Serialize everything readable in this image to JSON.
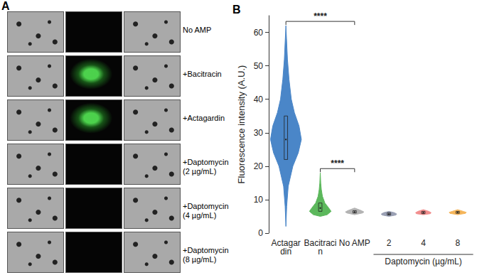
{
  "panel_a": {
    "letter": "A",
    "rows": [
      "No AMP",
      "+Bacitracin",
      "+Actagardin",
      "+Daptomycin (2 µg/mL)",
      "+Daptomycin (4 µg/mL)",
      "+Daptomycin (8 µg/mL)"
    ]
  },
  "chart_data": {
    "type": "violin",
    "panel_label": "B",
    "y_label": "Fluorescence intensity (A.U.)",
    "categories": [
      "Actagardin",
      "Bacitracin",
      "No AMP",
      "2",
      "4",
      "8"
    ],
    "colors": [
      "#4a86c8",
      "#5cb85c",
      "#b3b3b3",
      "#9aa0b4",
      "#f28e8e",
      "#f5b55a"
    ],
    "ylim": [
      0,
      65
    ],
    "yticks": [
      0,
      10,
      20,
      30,
      40,
      50,
      60
    ],
    "grid": false,
    "violins": [
      {
        "median": 28,
        "q1": 22,
        "q3": 35,
        "density": {
          "y": [
            2,
            8,
            14,
            20,
            24,
            28,
            32,
            36,
            40,
            46,
            52,
            58,
            62
          ],
          "width": [
            0,
            0.05,
            0.15,
            0.45,
            0.8,
            1.0,
            0.85,
            0.55,
            0.35,
            0.2,
            0.1,
            0.04,
            0
          ]
        }
      },
      {
        "median": 7.5,
        "q1": 6.5,
        "q3": 9,
        "density": {
          "y": [
            5,
            5.5,
            6.5,
            7.5,
            9,
            11,
            13,
            15,
            18
          ],
          "width": [
            0,
            0.45,
            0.7,
            0.55,
            0.3,
            0.14,
            0.07,
            0.03,
            0
          ]
        }
      },
      {
        "median": 6.3,
        "q1": 6,
        "q3": 6.7,
        "density": {
          "y": [
            5.5,
            6,
            6.3,
            6.7,
            7.5
          ],
          "width": [
            0,
            0.5,
            0.6,
            0.45,
            0
          ]
        }
      },
      {
        "median": 5.7,
        "q1": 5.4,
        "q3": 6.1,
        "density": {
          "y": [
            5,
            5.4,
            5.7,
            6.1,
            6.5
          ],
          "width": [
            0,
            0.45,
            0.5,
            0.35,
            0
          ]
        }
      },
      {
        "median": 6.1,
        "q1": 5.8,
        "q3": 6.5,
        "density": {
          "y": [
            5.5,
            5.8,
            6.1,
            6.5,
            7
          ],
          "width": [
            0,
            0.45,
            0.5,
            0.35,
            0
          ]
        }
      },
      {
        "median": 6.2,
        "q1": 5.9,
        "q3": 6.5,
        "density": {
          "y": [
            5.5,
            5.9,
            6.2,
            6.5,
            7
          ],
          "width": [
            0,
            0.5,
            0.55,
            0.35,
            0
          ]
        }
      }
    ],
    "group": {
      "label": "Daptomycin (µg/mL)",
      "categories": [
        "2",
        "4",
        "8"
      ]
    },
    "annotations": [
      {
        "from": "Actagardin",
        "to": "No AMP",
        "label": "****"
      },
      {
        "from": "Bacitracin",
        "to": "No AMP",
        "label": "****"
      }
    ]
  }
}
